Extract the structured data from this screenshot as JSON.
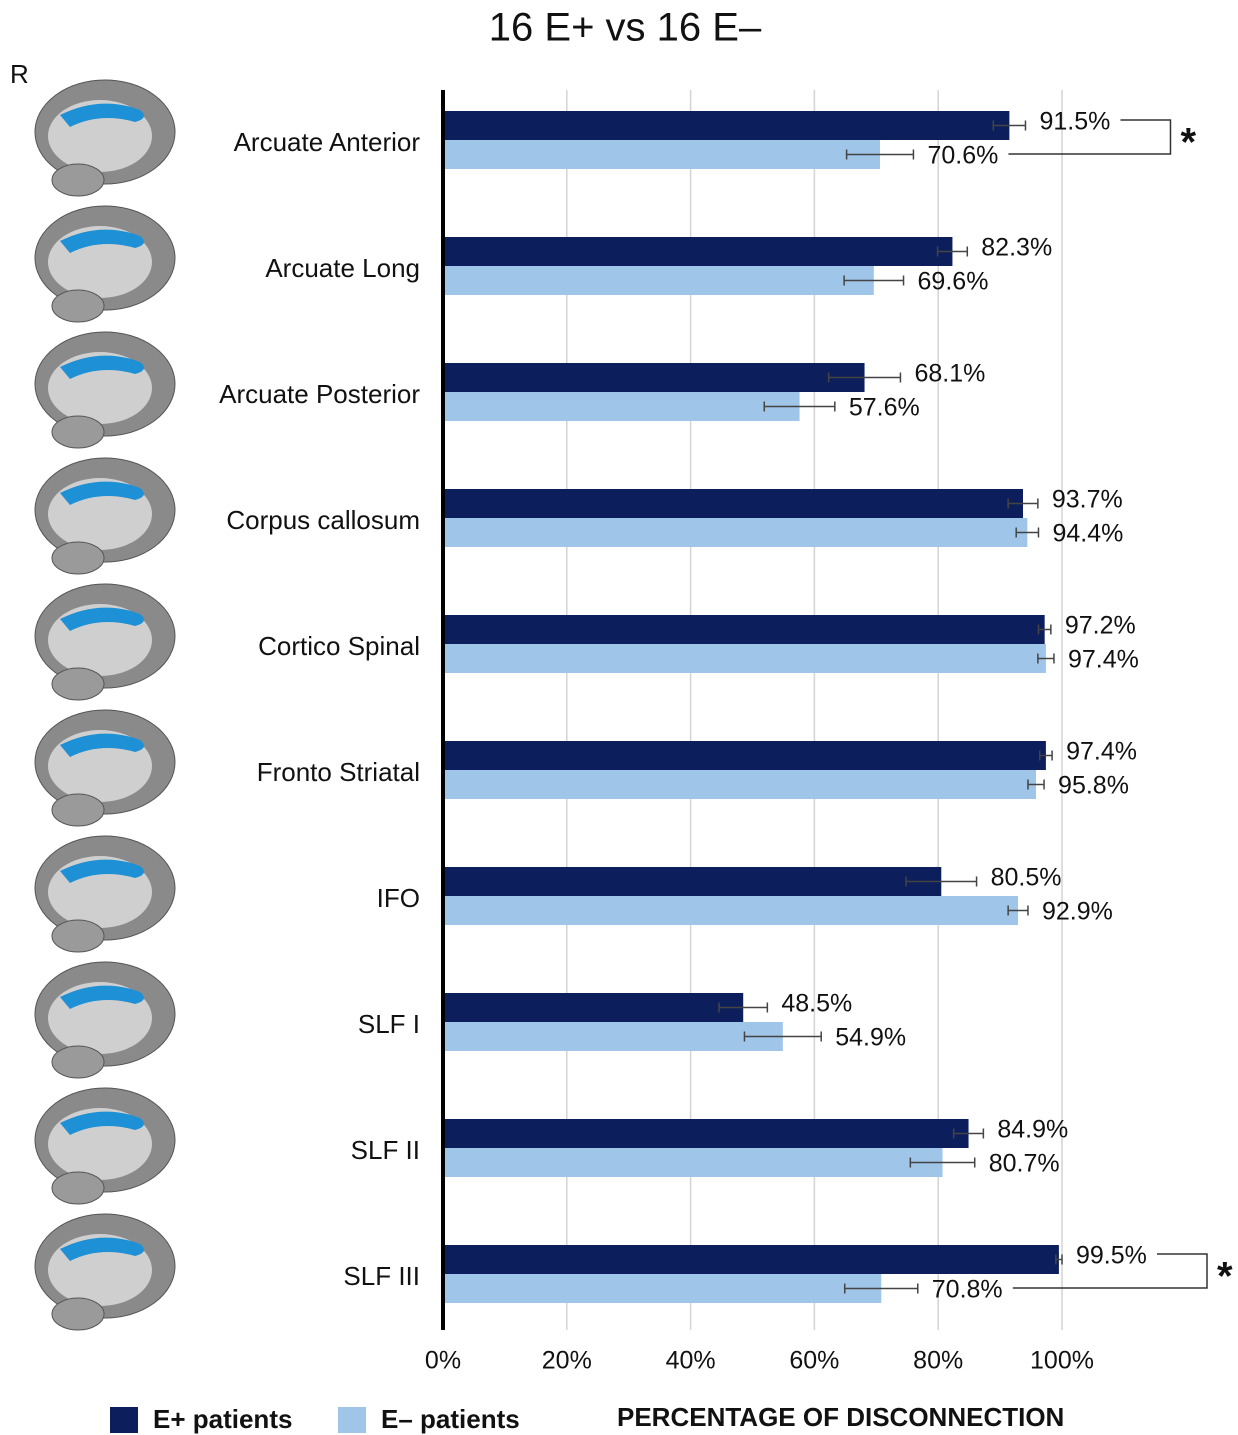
{
  "chart_data": {
    "type": "hbar",
    "title": "16 E+ vs 16 E–",
    "side_label": "R",
    "x_label": "PERCENTAGE OF DISCONNECTION",
    "categories": [
      "Arcuate Anterior",
      "Arcuate Long",
      "Arcuate Posterior",
      "Corpus callosum",
      "Cortico Spinal",
      "Fronto Striatal",
      "IFO",
      "SLF I",
      "SLF II",
      "SLF III"
    ],
    "series": [
      {
        "name": "E+ patients",
        "color": "#0c1f5c",
        "values": [
          91.5,
          82.3,
          68.1,
          93.7,
          97.2,
          97.4,
          80.5,
          48.5,
          84.9,
          99.5
        ],
        "value_labels": [
          "91.5%",
          "82.3%",
          "68.1%",
          "93.7%",
          "97.2%",
          "97.4%",
          "80.5%",
          "48.5%",
          "84.9%",
          "99.5%"
        ],
        "errors": [
          2.6,
          2.4,
          5.8,
          2.4,
          1.0,
          1.0,
          5.7,
          3.9,
          2.4,
          0.5
        ]
      },
      {
        "name": "E– patients",
        "color": "#9fc5e8",
        "values": [
          70.6,
          69.6,
          57.6,
          94.4,
          97.4,
          95.8,
          92.9,
          54.9,
          80.7,
          70.8
        ],
        "value_labels": [
          "70.6%",
          "69.6%",
          "57.6%",
          "94.4%",
          "97.4%",
          "95.8%",
          "92.9%",
          "54.9%",
          "80.7%",
          "70.8%"
        ],
        "errors": [
          5.4,
          4.8,
          5.7,
          1.8,
          1.3,
          1.3,
          1.6,
          6.2,
          5.2,
          5.9
        ]
      }
    ],
    "significance": [
      "*",
      null,
      null,
      null,
      null,
      null,
      null,
      null,
      null,
      "*"
    ],
    "xlim": [
      0,
      100
    ],
    "xticks": [
      {
        "value": 0,
        "label": "0%"
      },
      {
        "value": 20,
        "label": "20%"
      },
      {
        "value": 40,
        "label": "40%"
      },
      {
        "value": 60,
        "label": "60%"
      },
      {
        "value": 80,
        "label": "80%"
      },
      {
        "value": 100,
        "label": "100%"
      }
    ],
    "grid": true
  }
}
